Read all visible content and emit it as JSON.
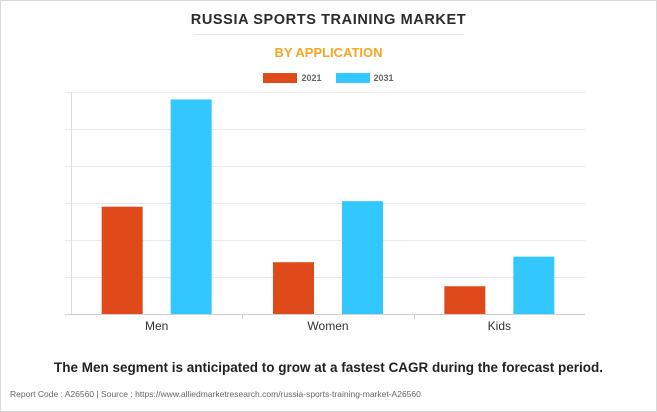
{
  "header": {
    "title": "RUSSIA SPORTS TRAINING MARKET",
    "subtitle": "BY APPLICATION"
  },
  "footer": {
    "insight": "The Men segment is anticipated to grow at a fastest CAGR during the forecast period.",
    "source": "Report Code : A26560  |  Source : https://www.alliedmarketresearch.com/russia-sports-training-market-A26560"
  },
  "colors": {
    "series_2021": "#e04a1a",
    "series_2031": "#33c7ff",
    "subtitle": "#f5a623"
  },
  "chart_data": {
    "type": "bar",
    "title": "RUSSIA SPORTS TRAINING MARKET",
    "subtitle": "BY APPLICATION",
    "categories": [
      "Men",
      "Women",
      "Kids"
    ],
    "series": [
      {
        "name": "2021",
        "values": [
          2.9,
          1.4,
          0.75
        ],
        "color": "#e04a1a"
      },
      {
        "name": "2031",
        "values": [
          5.8,
          3.05,
          1.55
        ],
        "color": "#33c7ff"
      }
    ],
    "xlabel": "",
    "ylabel": "",
    "ylim": [
      0,
      6
    ],
    "y_ticks_labeled": false,
    "grid": true,
    "legend_position": "top-center"
  }
}
